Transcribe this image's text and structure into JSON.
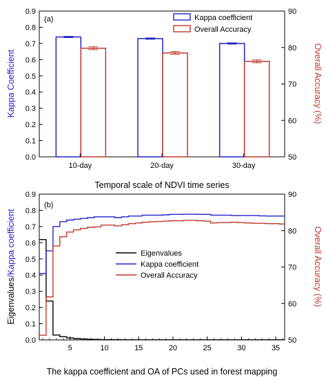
{
  "colors": {
    "kappa": "#2222cc",
    "accuracy": "#c0392b",
    "eigen": "#000000",
    "axis": "#000000"
  },
  "chart_data": [
    {
      "type": "bar",
      "panel_label": "(a)",
      "categories": [
        "10-day",
        "20-day",
        "30-day"
      ],
      "series": [
        {
          "name": "Kappa coefficient",
          "axis": "left",
          "values": [
            0.74,
            0.73,
            0.7
          ],
          "error": [
            0.004,
            0.004,
            0.004
          ]
        },
        {
          "name": "Overall Accuracy",
          "axis": "right",
          "values": [
            79.8,
            78.5,
            76.2
          ],
          "error": [
            0.4,
            0.4,
            0.4
          ]
        }
      ],
      "xlabel": "Temporal scale of NDVI time series",
      "ylabel_left": "Kappa Coefficient",
      "ylabel_right": "Overall Accuracy (%)",
      "ylim_left": [
        0,
        0.9
      ],
      "ylim_right": [
        50,
        90
      ],
      "yticks_left": [
        "0.0",
        "0.1",
        "0.2",
        "0.3",
        "0.4",
        "0.5",
        "0.6",
        "0.7",
        "0.8",
        "0.9"
      ],
      "yticks_right": [
        "50",
        "60",
        "70",
        "80",
        "90"
      ],
      "legend": "top-right",
      "grid": false
    },
    {
      "type": "line",
      "panel_label": "(b)",
      "x": [
        1,
        2,
        3,
        4,
        5,
        6,
        7,
        8,
        9,
        10,
        11,
        12,
        13,
        14,
        15,
        16,
        17,
        18,
        19,
        20,
        21,
        22,
        23,
        24,
        25,
        26,
        27,
        28,
        29,
        30,
        31,
        32,
        33,
        34,
        35,
        36
      ],
      "series": [
        {
          "name": "Eigenvalues",
          "axis": "left",
          "step": true,
          "values": [
            0.62,
            0.24,
            0.03,
            0.02,
            0.012,
            0.008,
            0.006,
            0.004,
            0.003,
            0.002,
            0.002,
            0.002,
            0.001,
            0.001,
            0.001,
            0.001,
            0.001,
            0.001,
            0.001,
            0.001,
            0.001,
            0.001,
            0.001,
            0.001,
            0.001,
            0.001,
            0.001,
            0.001,
            0.001,
            0.001,
            0.001,
            0.001,
            0.001,
            0.001,
            0.001,
            0.001
          ]
        },
        {
          "name": "Kappa coefficient",
          "axis": "left",
          "step": true,
          "values": [
            0.41,
            0.55,
            0.7,
            0.73,
            0.74,
            0.745,
            0.75,
            0.755,
            0.76,
            0.76,
            0.76,
            0.755,
            0.76,
            0.765,
            0.765,
            0.77,
            0.77,
            0.77,
            0.772,
            0.775,
            0.775,
            0.776,
            0.776,
            0.775,
            0.775,
            0.77,
            0.77,
            0.77,
            0.768,
            0.768,
            0.768,
            0.768,
            0.766,
            0.765,
            0.765,
            0.765
          ]
        },
        {
          "name": "Overall Accuracy",
          "axis": "right",
          "step": true,
          "values": [
            51.3,
            61.8,
            75.8,
            78.3,
            79.6,
            80.2,
            80.6,
            80.9,
            81.0,
            81.5,
            81.5,
            81.3,
            81.6,
            81.9,
            82.1,
            82.3,
            82.4,
            82.5,
            82.6,
            82.7,
            82.7,
            82.8,
            82.8,
            82.7,
            82.6,
            82.1,
            82.2,
            82.2,
            82.3,
            82.2,
            82.1,
            82.0,
            82.0,
            81.9,
            81.9,
            81.8
          ]
        }
      ],
      "xlabel": "The kappa coefficient and OA of PCs used in forest mapping",
      "ylabel_left": "Eigenvalues/Kappa coefficient",
      "ylabel_right": "Overall Accuracy (%)",
      "xlim": [
        0.5,
        36.3
      ],
      "ylim_left": [
        0,
        0.9
      ],
      "ylim_right": [
        50,
        90
      ],
      "xticks": [
        "5",
        "10",
        "15",
        "20",
        "25",
        "30",
        "35"
      ],
      "yticks_left": [
        "0.0",
        "0.1",
        "0.2",
        "0.3",
        "0.4",
        "0.5",
        "0.6",
        "0.7",
        "0.8",
        "0.9"
      ],
      "yticks_right": [
        "50",
        "60",
        "70",
        "80",
        "90"
      ],
      "legend": "center",
      "grid": false
    }
  ]
}
